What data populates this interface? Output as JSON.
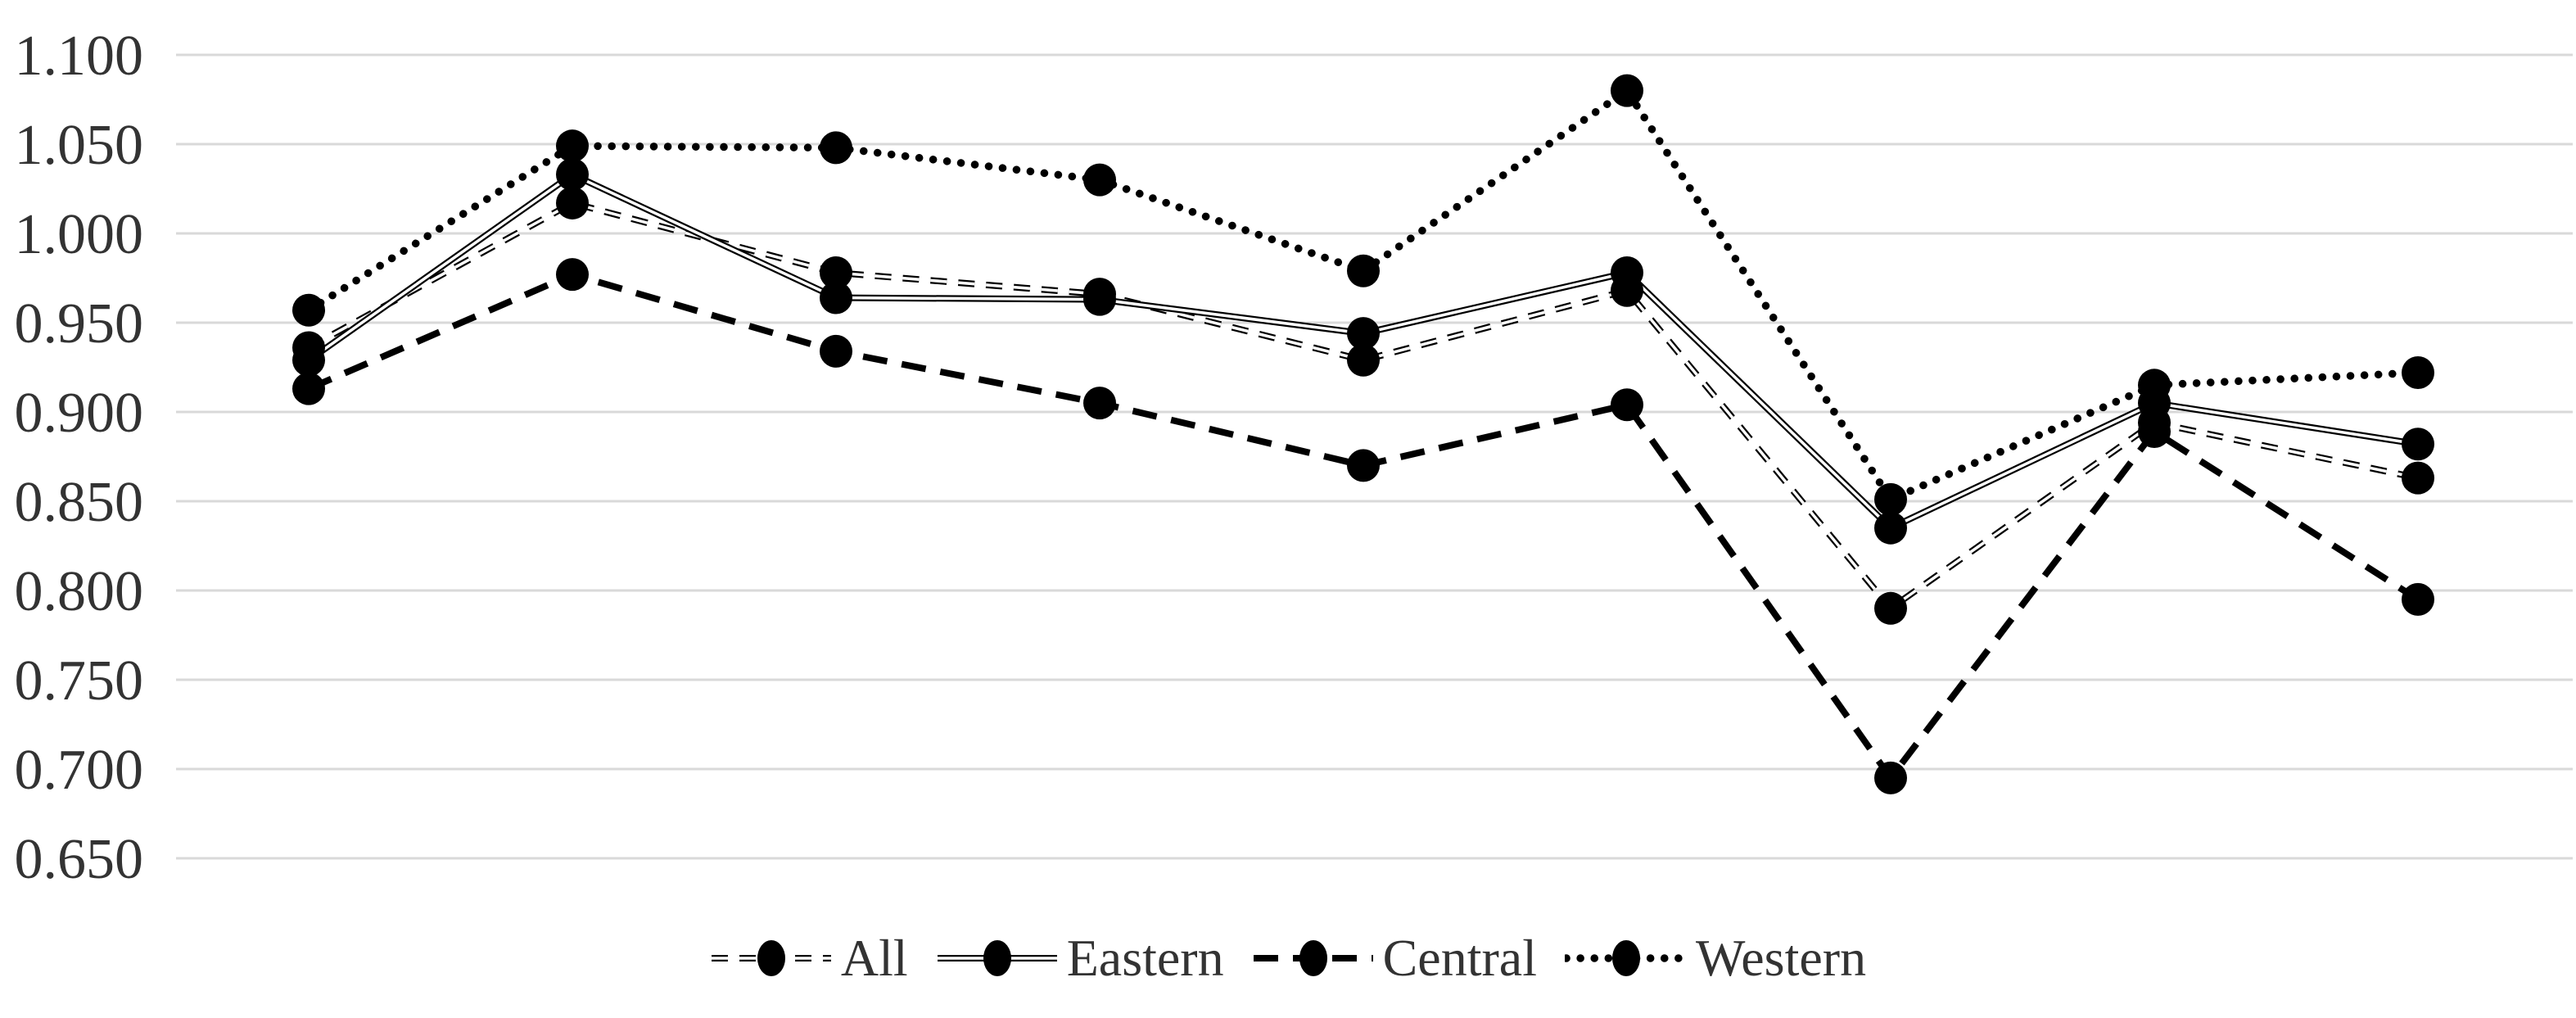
{
  "chart_data": {
    "type": "line",
    "title": "",
    "xlabel": "",
    "ylabel": "",
    "x_count": 9,
    "x_labels": [
      "",
      "",
      "",
      "",
      "",
      "",
      "",
      "",
      ""
    ],
    "ylim": [
      0.65,
      1.1
    ],
    "ytick_step": 0.05,
    "grid": true,
    "gridline_color": "#d9d9d9",
    "text_color": "#333333",
    "background_color": "#ffffff",
    "marker": "circle",
    "marker_color": "#000000",
    "legend_position": "bottom-center",
    "yticks": [
      {
        "label": "1.100",
        "value": 1.1
      },
      {
        "label": "1.050",
        "value": 1.05
      },
      {
        "label": "1.000",
        "value": 1.0
      },
      {
        "label": "0.950",
        "value": 0.95
      },
      {
        "label": "0.900",
        "value": 0.9
      },
      {
        "label": "0.850",
        "value": 0.85
      },
      {
        "label": "0.800",
        "value": 0.8
      },
      {
        "label": "0.750",
        "value": 0.75
      },
      {
        "label": "0.700",
        "value": 0.7
      },
      {
        "label": "0.650",
        "value": 0.65
      }
    ],
    "series": [
      {
        "name": "All",
        "style": "dash-double",
        "color": "#000000",
        "values": [
          0.936,
          1.017,
          0.978,
          0.966,
          0.929,
          0.968,
          0.79,
          0.894,
          0.863
        ]
      },
      {
        "name": "Eastern",
        "style": "double",
        "color": "#000000",
        "values": [
          0.929,
          1.033,
          0.964,
          0.963,
          0.944,
          0.978,
          0.835,
          0.905,
          0.882
        ]
      },
      {
        "name": "Central",
        "style": "long-dash",
        "color": "#000000",
        "values": [
          0.913,
          0.977,
          0.934,
          0.905,
          0.87,
          0.904,
          0.695,
          0.889,
          0.795
        ]
      },
      {
        "name": "Western",
        "style": "dot",
        "color": "#000000",
        "values": [
          0.957,
          1.049,
          1.048,
          1.03,
          0.979,
          1.08,
          0.851,
          0.915,
          0.922
        ]
      }
    ]
  }
}
